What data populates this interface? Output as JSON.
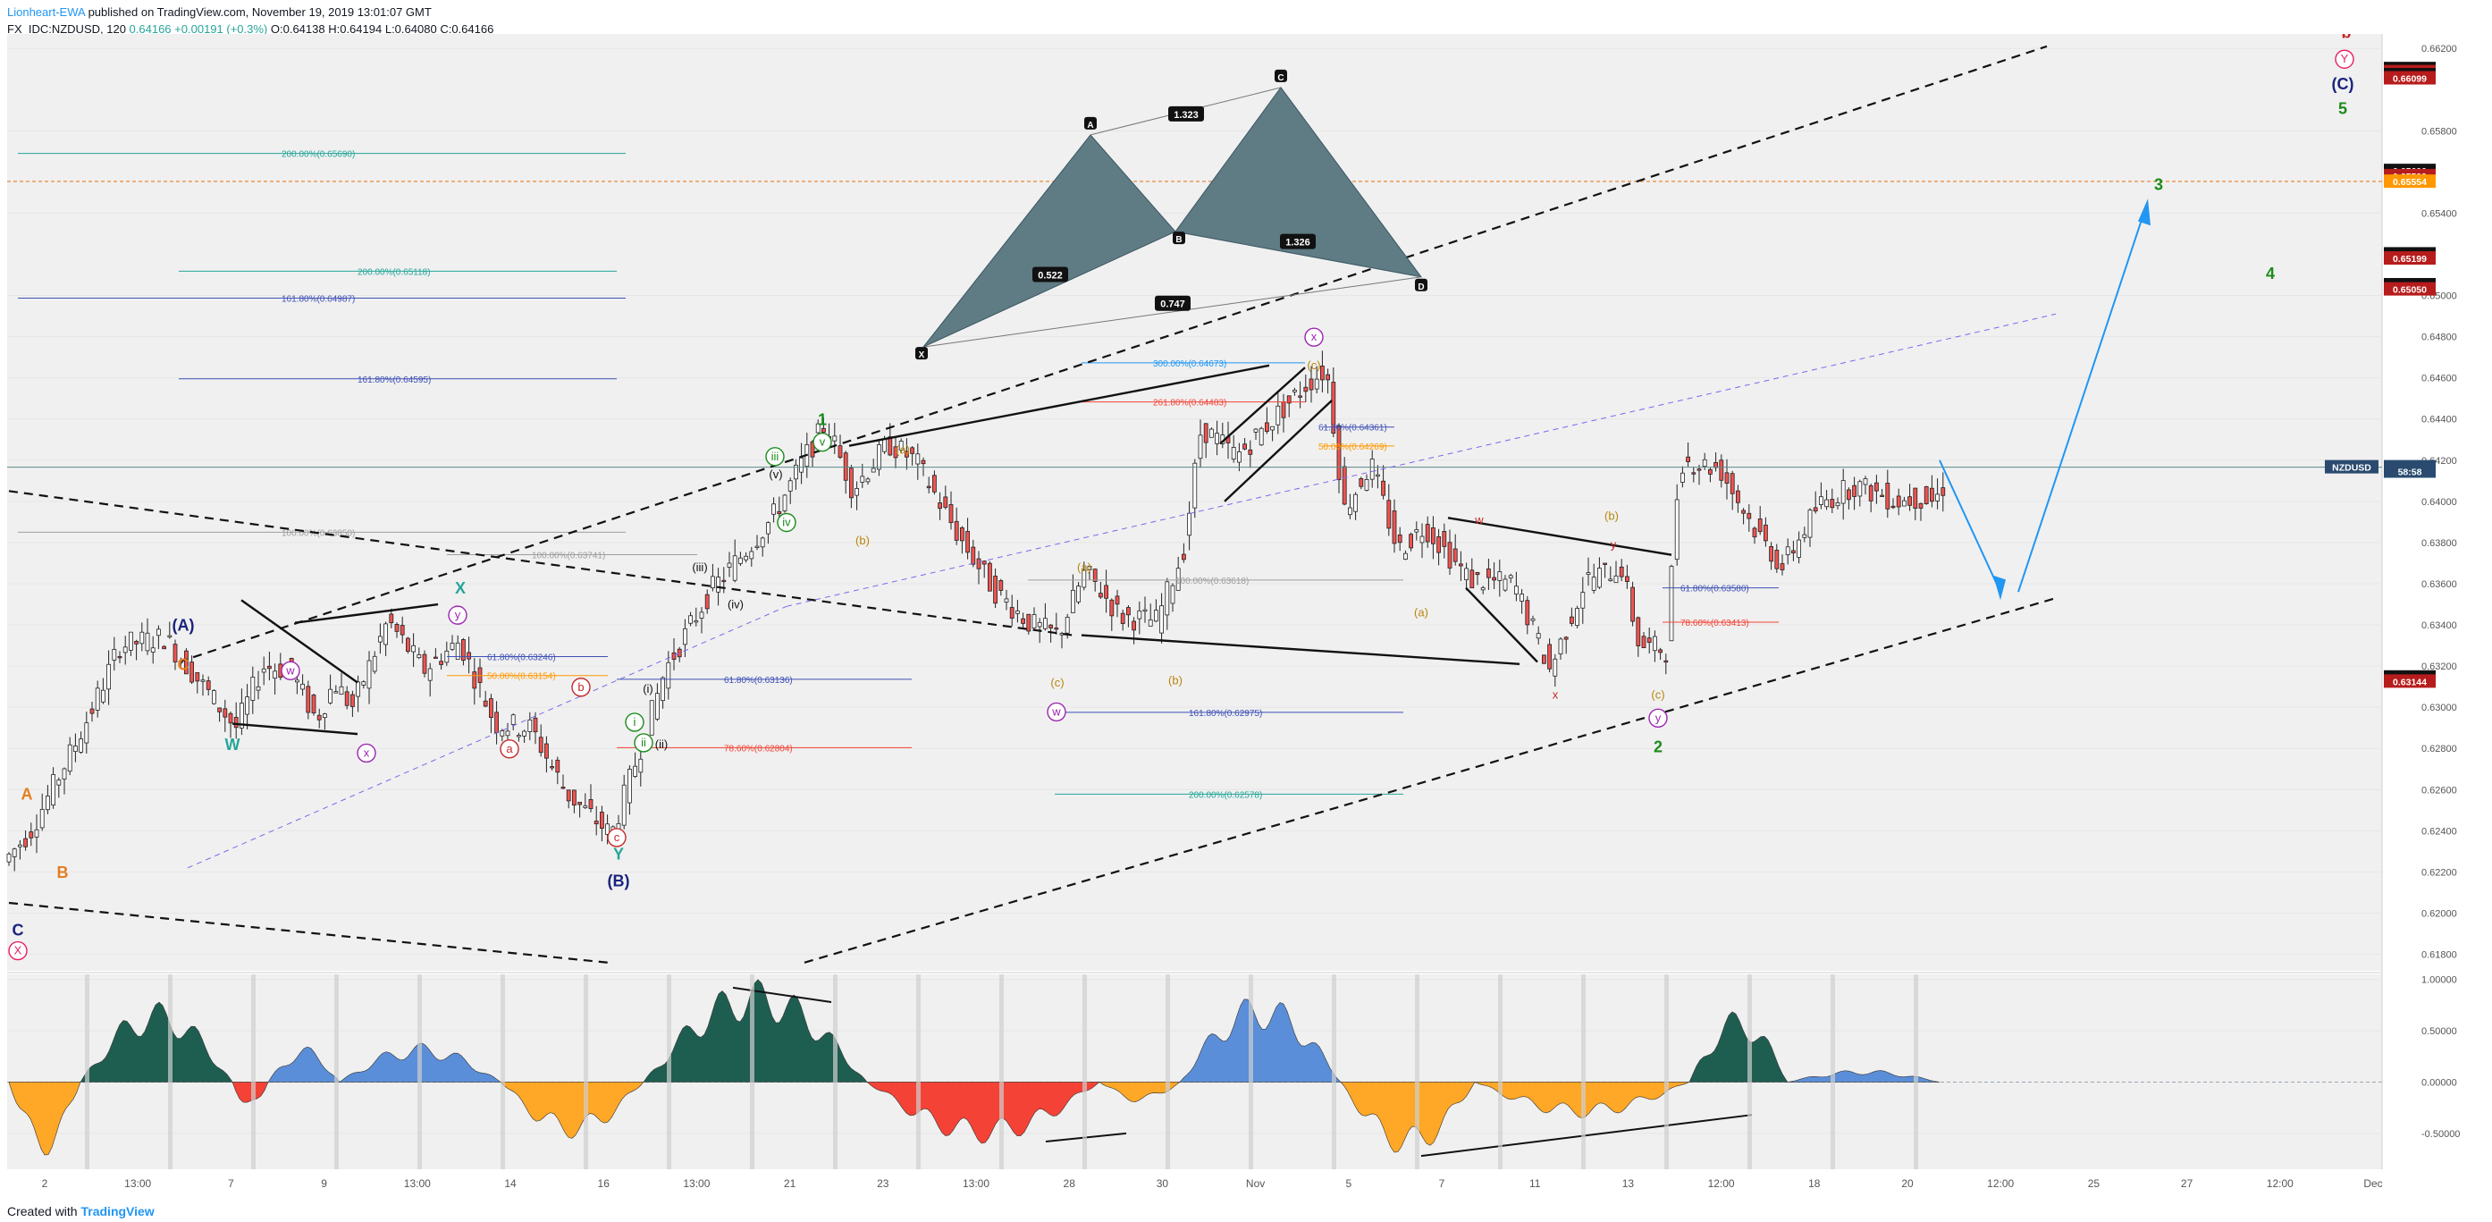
{
  "header": {
    "author": "Lionheart-EWA",
    "published": "published on TradingView.com, November 19, 2019 13:01:07 GMT",
    "symbol": "FX_IDC:NZDUSD, 120",
    "price": "0.64166",
    "change": "+0.00191 (+0.3%)",
    "ohlc_o": "O:0.64138",
    "ohlc_h": "H:0.64194",
    "ohlc_l": "L:0.64080",
    "ohlc_c": "C:0.64166"
  },
  "footer": {
    "created_with": "Created with",
    "brand": "TradingView"
  },
  "colors": {
    "up": "#26a69a",
    "down": "#ef5350",
    "candle_body_up": "#ffffff",
    "candle_body_down": "#ef5350",
    "wave_blue": "#1a237e",
    "wave_green": "#1b8b1b",
    "wave_orange": "#e67e22",
    "wave_red": "#c62828",
    "pattern_fill": "#5f7b84",
    "indicator_dark": "#1e5e50",
    "indicator_blue": "#5b8ed8",
    "indicator_red": "#f44336",
    "indicator_orange": "#ffa726",
    "arrow_blue": "#2196f3"
  },
  "chart_data": {
    "type": "candlestick",
    "title": "NZDUSD",
    "ylim": [
      0.6172,
      0.6627
    ],
    "y_ticks": [
      "0.66200",
      "0.65800",
      "0.65400",
      "0.65000",
      "0.64800",
      "0.64600",
      "0.64400",
      "0.64200",
      "0.64000",
      "0.63800",
      "0.63600",
      "0.63400",
      "0.63200",
      "0.63000",
      "0.62800",
      "0.62600",
      "0.62400",
      "0.62200",
      "0.62000",
      "0.61800"
    ],
    "x_ticks": [
      "2",
      "13:00",
      "7",
      "9",
      "13:00",
      "14",
      "16",
      "13:00",
      "21",
      "23",
      "13:00",
      "28",
      "30",
      "Nov",
      "5",
      "7",
      "11",
      "13",
      "12:00",
      "18",
      "20",
      "12:00",
      "25",
      "27",
      "12:00",
      "Dec"
    ],
    "price_marks": [
      {
        "value": "0.66100",
        "bg": "#111111"
      },
      {
        "value": "0.66099",
        "bg": "#b71c1c"
      },
      {
        "value": "0.66100",
        "bg": "#111111"
      },
      {
        "value": "0.66099",
        "bg": "#b71c1c"
      },
      {
        "value": "0.65600",
        "bg": "#111111"
      },
      {
        "value": "0.65599",
        "bg": "#b71c1c"
      },
      {
        "value": "0.65554",
        "bg": "#ff9800"
      },
      {
        "value": "0.65200",
        "bg": "#111111"
      },
      {
        "value": "0.65199",
        "bg": "#b71c1c"
      },
      {
        "value": "0.65050",
        "bg": "#111111"
      },
      {
        "value": "0.65050",
        "bg": "#b71c1c"
      },
      {
        "value": "0.64166",
        "bg": "#2a4b6f"
      },
      {
        "value": "58:58",
        "bg": "#2a4b6f"
      },
      {
        "value": "0.63145",
        "bg": "#111111"
      },
      {
        "value": "0.63144",
        "bg": "#b71c1c"
      }
    ],
    "symbol_tag": "NZDUSD",
    "fib_levels": [
      {
        "label": "200.00%(0.65690)",
        "value": 0.6569,
        "color": "#26a69a"
      },
      {
        "label": "161.80%(0.64987)",
        "value": 0.64987,
        "color": "#3f51b5"
      },
      {
        "label": "200.00%(0.65118)",
        "value": 0.65118,
        "color": "#26a69a"
      },
      {
        "label": "161.80%(0.64595)",
        "value": 0.64595,
        "color": "#3f51b5"
      },
      {
        "label": "100.00%(0.63850)",
        "value": 0.6385,
        "color": "#9e9e9e"
      },
      {
        "label": "100.00%(0.63741)",
        "value": 0.63741,
        "color": "#9e9e9e"
      },
      {
        "label": "61.80%(0.63246)",
        "value": 0.63246,
        "color": "#3f51b5"
      },
      {
        "label": "50.00%(0.63154)",
        "value": 0.63154,
        "color": "#ff9800"
      },
      {
        "label": "61.80%(0.63136)",
        "value": 0.63136,
        "color": "#3f51b5"
      },
      {
        "label": "78.60%(0.62804)",
        "value": 0.62804,
        "color": "#f44336"
      },
      {
        "label": "300.00%(0.64673)",
        "value": 0.64673,
        "color": "#2196f3"
      },
      {
        "label": "261.80%(0.64483)",
        "value": 0.64483,
        "color": "#f44336"
      },
      {
        "label": "61.80%(0.64361)",
        "value": 0.64361,
        "color": "#3f51b5"
      },
      {
        "label": "50.00%(0.64269)",
        "value": 0.64269,
        "color": "#ff9800"
      },
      {
        "label": "100.00%(0.63618)",
        "value": 0.63618,
        "color": "#9e9e9e"
      },
      {
        "label": "161.80%(0.62975)",
        "value": 0.62975,
        "color": "#3f51b5"
      },
      {
        "label": "200.00%(0.62578)",
        "value": 0.62578,
        "color": "#26a69a"
      },
      {
        "label": "61.80%(0.63580)",
        "value": 0.6358,
        "color": "#3f51b5"
      },
      {
        "label": "78.60%(0.63413)",
        "value": 0.63413,
        "color": "#f44336"
      }
    ],
    "pattern": {
      "points": [
        "X",
        "A",
        "B",
        "C",
        "D"
      ],
      "ratios": [
        "1.323",
        "0.522",
        "0.747",
        "1.326"
      ]
    },
    "wave_labels": [
      {
        "t": "C",
        "c": "#1a237e"
      },
      {
        "t": "X",
        "c": "#e91e63",
        "circle": true
      },
      {
        "t": "A",
        "c": "#e67e22"
      },
      {
        "t": "B",
        "c": "#e67e22"
      },
      {
        "t": "C",
        "c": "#e67e22"
      },
      {
        "t": "(A)",
        "c": "#1a237e"
      },
      {
        "t": "W",
        "c": "#26a69a"
      },
      {
        "t": "w",
        "c": "#9c27b0",
        "circle": true
      },
      {
        "t": "x",
        "c": "#9c27b0",
        "circle": true
      },
      {
        "t": "X",
        "c": "#26a69a"
      },
      {
        "t": "y",
        "c": "#9c27b0",
        "circle": true
      },
      {
        "t": "a",
        "c": "#c62828",
        "circle": true
      },
      {
        "t": "b",
        "c": "#c62828",
        "circle": true
      },
      {
        "t": "c",
        "c": "#c62828",
        "circle": true
      },
      {
        "t": "Y",
        "c": "#26a69a"
      },
      {
        "t": "(B)",
        "c": "#1a237e"
      },
      {
        "t": "i",
        "c": "#1b8b1b",
        "circle": true
      },
      {
        "t": "ii",
        "c": "#1b8b1b",
        "circle": true
      },
      {
        "t": "(i)",
        "c": "#111111"
      },
      {
        "t": "(ii)",
        "c": "#111111"
      },
      {
        "t": "(iii)",
        "c": "#111111"
      },
      {
        "t": "(iv)",
        "c": "#111111"
      },
      {
        "t": "(v)",
        "c": "#111111"
      },
      {
        "t": "iii",
        "c": "#1b8b1b",
        "circle": true
      },
      {
        "t": "iv",
        "c": "#1b8b1b",
        "circle": true
      },
      {
        "t": "v",
        "c": "#1b8b1b",
        "circle": true
      },
      {
        "t": "1",
        "c": "#1b8b1b"
      },
      {
        "t": "(a)",
        "c": "#b8860b"
      },
      {
        "t": "(b)",
        "c": "#b8860b"
      },
      {
        "t": "(c)",
        "c": "#b8860b"
      },
      {
        "t": "w",
        "c": "#9c27b0",
        "circle": true
      },
      {
        "t": "(a)",
        "c": "#b8860b"
      },
      {
        "t": "(b)",
        "c": "#b8860b"
      },
      {
        "t": "(c)",
        "c": "#b8860b"
      },
      {
        "t": "x",
        "c": "#9c27b0",
        "circle": true
      },
      {
        "t": "(a)",
        "c": "#b8860b"
      },
      {
        "t": "w",
        "c": "#c62828"
      },
      {
        "t": "(b)",
        "c": "#b8860b"
      },
      {
        "t": "x",
        "c": "#c62828"
      },
      {
        "t": "y",
        "c": "#c62828"
      },
      {
        "t": "(c)",
        "c": "#b8860b"
      },
      {
        "t": "y",
        "c": "#9c27b0",
        "circle": true
      },
      {
        "t": "2",
        "c": "#1b8b1b"
      },
      {
        "t": "3",
        "c": "#1b8b1b"
      },
      {
        "t": "4",
        "c": "#1b8b1b"
      },
      {
        "t": "b",
        "c": "#c62828"
      },
      {
        "t": "Y",
        "c": "#e91e63",
        "circle": true
      },
      {
        "t": "(C)",
        "c": "#1a237e"
      },
      {
        "t": "5",
        "c": "#1b8b1b"
      }
    ],
    "oscillator": {
      "y_ticks": [
        "1.00000",
        "0.50000",
        "0.00000",
        "-0.50000"
      ],
      "ylim": [
        -0.85,
        1.05
      ]
    }
  }
}
